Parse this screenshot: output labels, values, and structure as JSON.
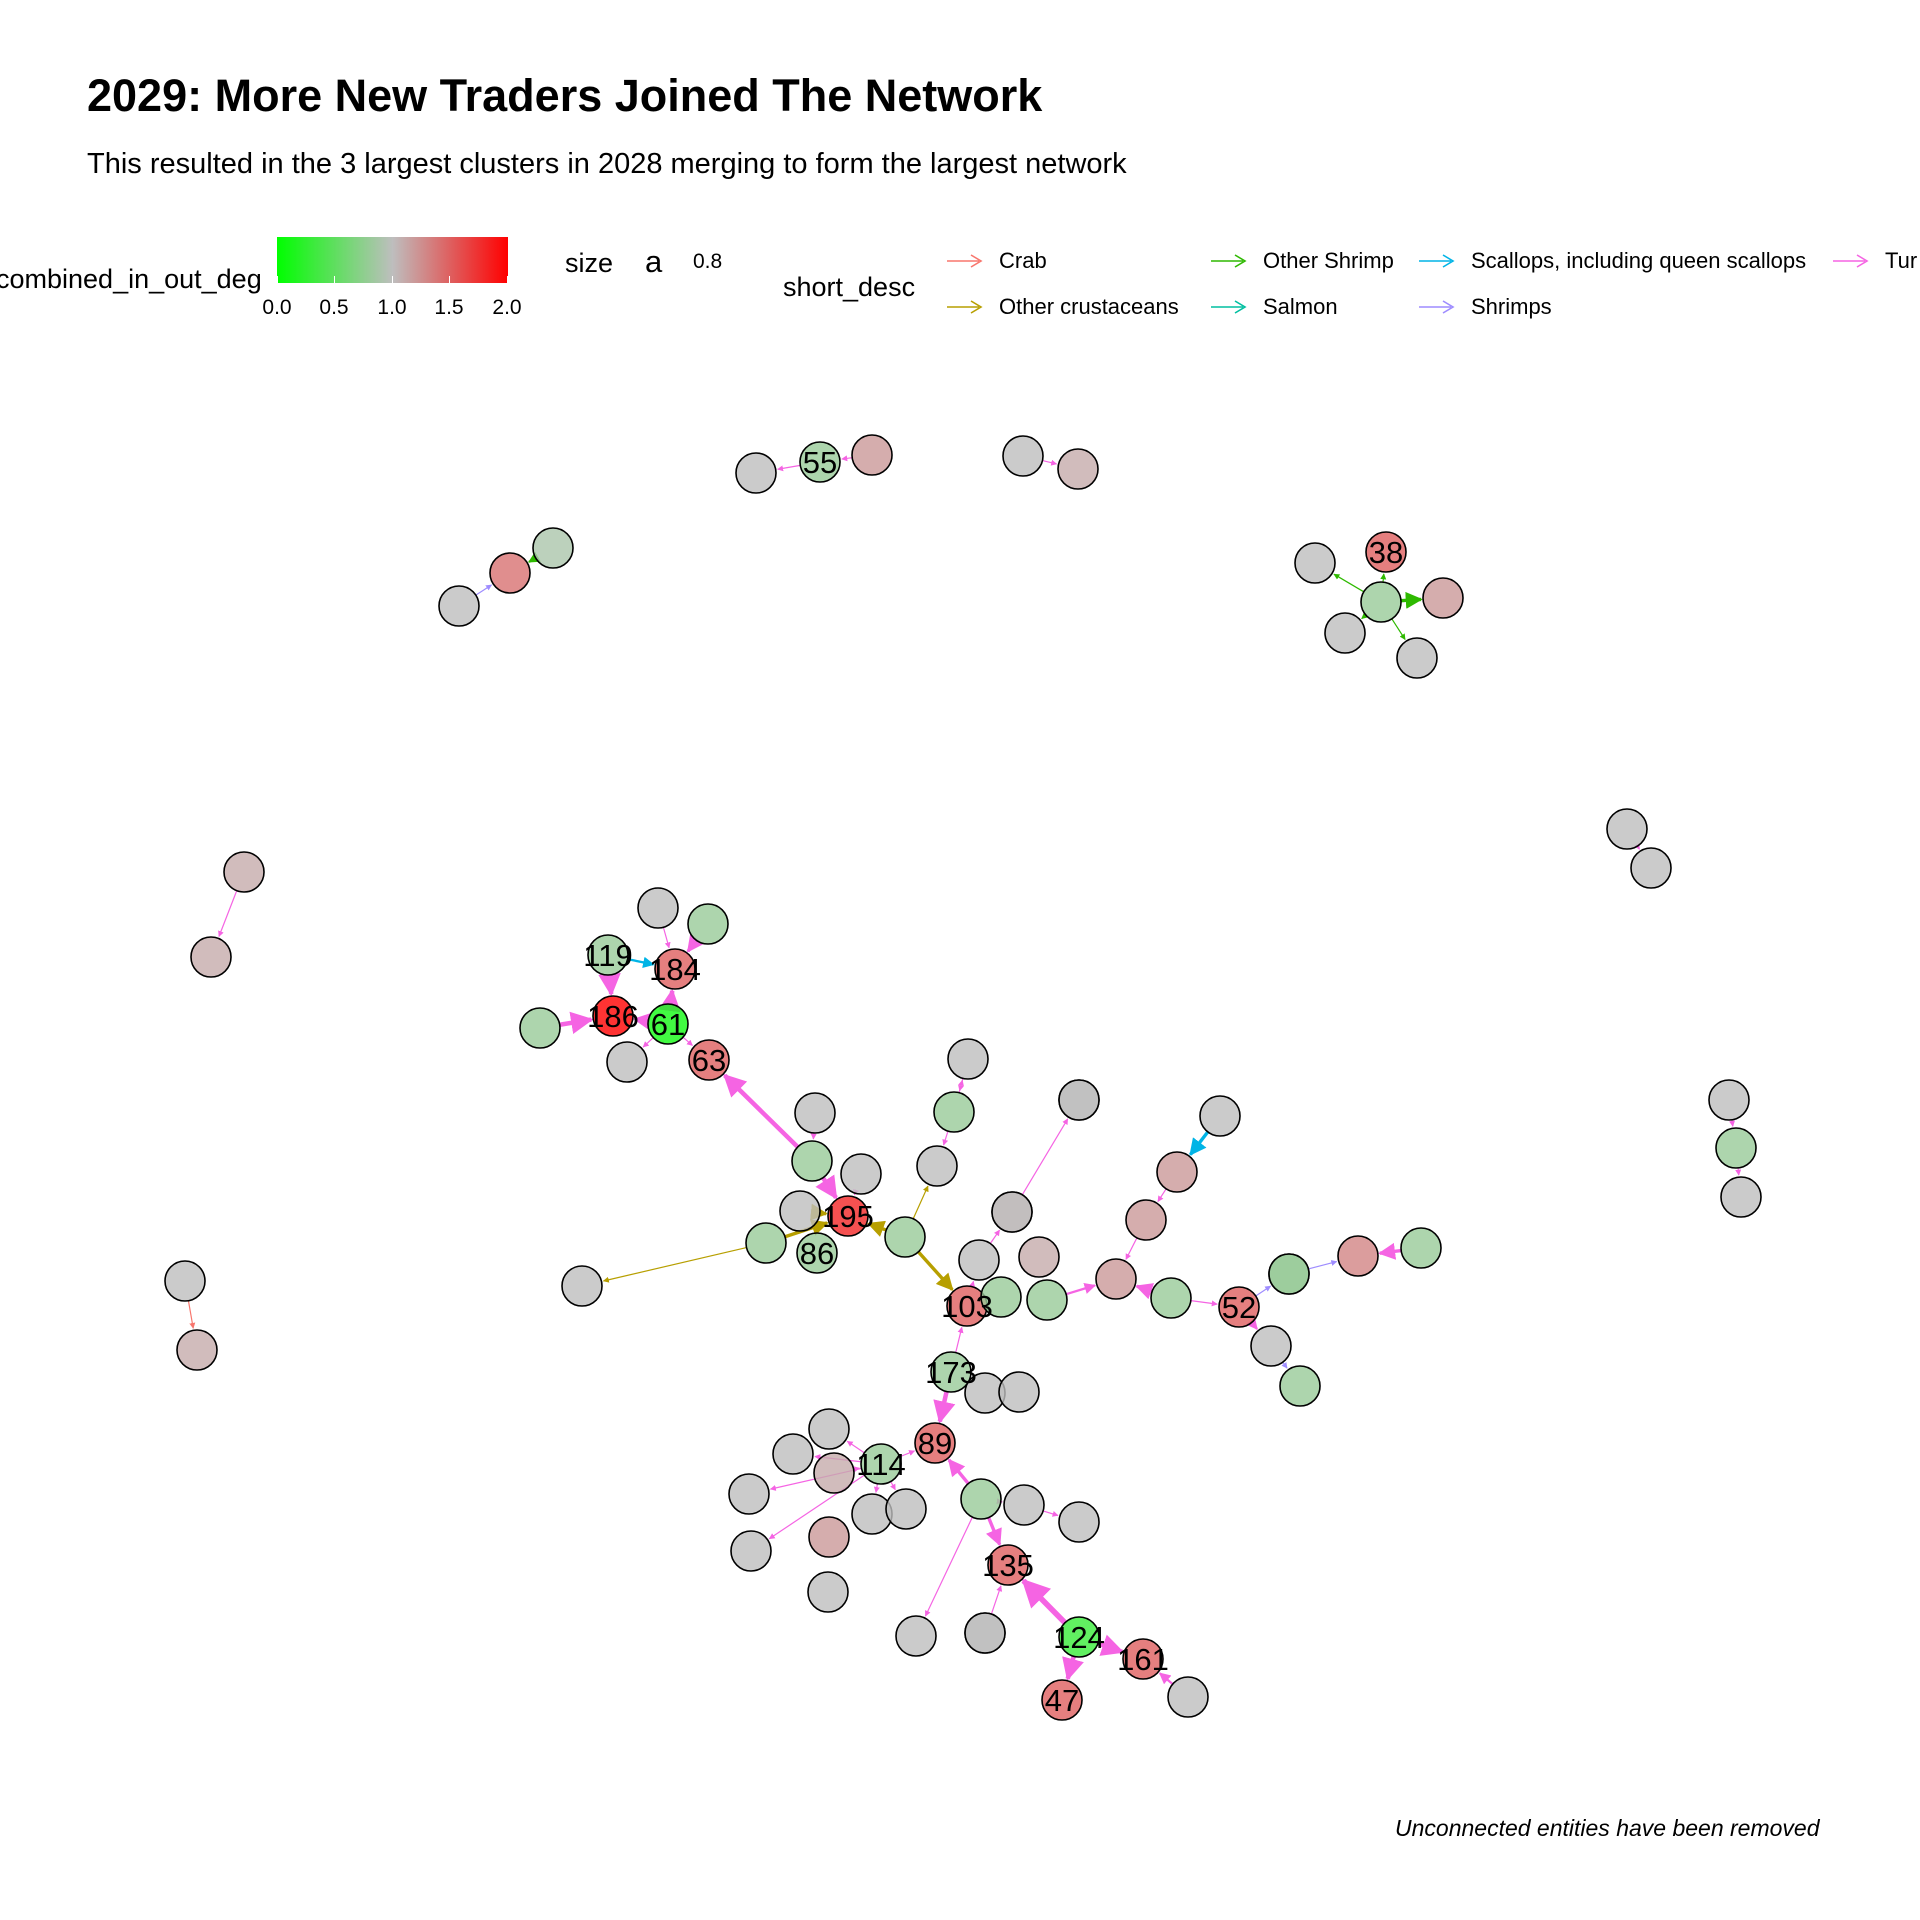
{
  "title": "2029: More New Traders Joined The Network",
  "subtitle": "This resulted in the 3 largest clusters in 2028 merging to form the largest network",
  "caption": "Unconnected entities have been removed",
  "legend": {
    "color_title": "combined_in_out_deg",
    "color_scale": {
      "low": "#00ff00",
      "mid": "#bebebe",
      "high": "#ff0000",
      "range": [
        0,
        2
      ]
    },
    "color_ticks": [
      "0.0",
      "0.5",
      "1.0",
      "1.5",
      "2.0"
    ],
    "size_title": "size",
    "size_key": "a",
    "size_value": "0.8",
    "edge_title": "short_desc",
    "edge_types": [
      {
        "label": "Crab",
        "color": "#f8766d"
      },
      {
        "label": "Other crustaceans",
        "color": "#b79f00"
      },
      {
        "label": "Other Shrimp",
        "color": "#2eb900"
      },
      {
        "label": "Salmon",
        "color": "#00bfa0"
      },
      {
        "label": "Scallops, including queen scallops",
        "color": "#00b4e6"
      },
      {
        "label": "Shrimps",
        "color": "#9e8cff"
      },
      {
        "label": "Tur",
        "color": "#f564e3"
      }
    ]
  },
  "network": {
    "nodes": [
      {
        "id": "n55",
        "label": "55",
        "deg": 0.8
      },
      {
        "id": "nA1",
        "label": "",
        "deg": 1.0
      },
      {
        "id": "nA2",
        "label": "",
        "deg": 1.2
      },
      {
        "id": "nB1",
        "label": "",
        "deg": 1.0
      },
      {
        "id": "nB2",
        "label": "",
        "deg": 1.1
      },
      {
        "id": "nC1",
        "label": "",
        "deg": 0.9
      },
      {
        "id": "nC2",
        "label": "",
        "deg": 1.4
      },
      {
        "id": "nC3",
        "label": "",
        "deg": 1.0
      },
      {
        "id": "n38",
        "label": "38",
        "deg": 1.5
      },
      {
        "id": "nD1",
        "label": "",
        "deg": 0.8
      },
      {
        "id": "nD2",
        "label": "",
        "deg": 1.0
      },
      {
        "id": "nD3",
        "label": "",
        "deg": 1.2
      },
      {
        "id": "nD4",
        "label": "",
        "deg": 1.0
      },
      {
        "id": "nD5",
        "label": "",
        "deg": 1.0
      },
      {
        "id": "nE1",
        "label": "",
        "deg": 1.0
      },
      {
        "id": "nE2",
        "label": "",
        "deg": 1.0
      },
      {
        "id": "nF1",
        "label": "",
        "deg": 1.1
      },
      {
        "id": "nF2",
        "label": "",
        "deg": 1.1
      },
      {
        "id": "nG1",
        "label": "",
        "deg": 1.0
      },
      {
        "id": "nG2",
        "label": "",
        "deg": 0.8
      },
      {
        "id": "nG3",
        "label": "",
        "deg": 1.0
      },
      {
        "id": "nH1",
        "label": "",
        "deg": 1.0
      },
      {
        "id": "nH2",
        "label": "",
        "deg": 1.1
      },
      {
        "id": "n119",
        "label": "119",
        "deg": 0.8
      },
      {
        "id": "n184",
        "label": "184",
        "deg": 1.5
      },
      {
        "id": "n186",
        "label": "186",
        "deg": 2.0
      },
      {
        "id": "n61",
        "label": "61",
        "deg": 0.1
      },
      {
        "id": "n63",
        "label": "63",
        "deg": 1.5
      },
      {
        "id": "nI1",
        "label": "",
        "deg": 1.0
      },
      {
        "id": "nI2",
        "label": "",
        "deg": 0.8
      },
      {
        "id": "nI3",
        "label": "",
        "deg": 0.8
      },
      {
        "id": "nI4",
        "label": "",
        "deg": 1.0
      },
      {
        "id": "n195",
        "label": "195",
        "deg": 1.8
      },
      {
        "id": "n86",
        "label": "86",
        "deg": 0.8
      },
      {
        "id": "nJ1",
        "label": "",
        "deg": 0.8
      },
      {
        "id": "nJ2",
        "label": "",
        "deg": 1.0
      },
      {
        "id": "nJ3",
        "label": "",
        "deg": 1.0
      },
      {
        "id": "nJ4",
        "label": "",
        "deg": 1.0
      },
      {
        "id": "nJ5",
        "label": "",
        "deg": 0.8
      },
      {
        "id": "nJ6",
        "label": "",
        "deg": 0.8
      },
      {
        "id": "nJ7",
        "label": "",
        "deg": 1.0
      },
      {
        "id": "nK1",
        "label": "",
        "deg": 1.0
      },
      {
        "id": "nK2",
        "label": "",
        "deg": 0.8
      },
      {
        "id": "nK3",
        "label": "",
        "deg": 1.0
      },
      {
        "id": "nK4",
        "label": "",
        "deg": 1.0
      },
      {
        "id": "nK5",
        "label": "",
        "deg": 1.0
      },
      {
        "id": "nK6",
        "label": "",
        "deg": 1.1
      },
      {
        "id": "nK7",
        "label": "",
        "deg": 1.0
      },
      {
        "id": "n103",
        "label": "103",
        "deg": 1.5
      },
      {
        "id": "nL1",
        "label": "",
        "deg": 1.0
      },
      {
        "id": "nL2",
        "label": "",
        "deg": 1.1
      },
      {
        "id": "nL3",
        "label": "",
        "deg": 0.8
      },
      {
        "id": "nL4",
        "label": "",
        "deg": 1.2
      },
      {
        "id": "nL5",
        "label": "",
        "deg": 0.8
      },
      {
        "id": "nL6",
        "label": "",
        "deg": 0.8
      },
      {
        "id": "nL7",
        "label": "",
        "deg": 1.2
      },
      {
        "id": "nL8",
        "label": "",
        "deg": 1.2
      },
      {
        "id": "nL9",
        "label": "",
        "deg": 1.0
      },
      {
        "id": "nL10",
        "label": "",
        "deg": 0.8
      },
      {
        "id": "nL11",
        "label": "",
        "deg": 0.8
      },
      {
        "id": "nL12",
        "label": "",
        "deg": 1.3
      },
      {
        "id": "nL13",
        "label": "",
        "deg": 0.8
      },
      {
        "id": "n52",
        "label": "52",
        "deg": 1.5
      },
      {
        "id": "nL14",
        "label": "",
        "deg": 1.0
      },
      {
        "id": "nL15",
        "label": "",
        "deg": 0.8
      },
      {
        "id": "n173",
        "label": "173",
        "deg": 0.8
      },
      {
        "id": "nM1",
        "label": "",
        "deg": 1.0
      },
      {
        "id": "nM2",
        "label": "",
        "deg": 1.0
      },
      {
        "id": "n89",
        "label": "89",
        "deg": 1.5
      },
      {
        "id": "n114",
        "label": "114",
        "deg": 0.8
      },
      {
        "id": "nN1",
        "label": "",
        "deg": 1.0
      },
      {
        "id": "nN2",
        "label": "",
        "deg": 1.0
      },
      {
        "id": "nN3",
        "label": "",
        "deg": 1.1
      },
      {
        "id": "nN4",
        "label": "",
        "deg": 1.0
      },
      {
        "id": "nN5",
        "label": "",
        "deg": 1.0
      },
      {
        "id": "nN6",
        "label": "",
        "deg": 1.0
      },
      {
        "id": "nN7",
        "label": "",
        "deg": 1.0
      },
      {
        "id": "nN8",
        "label": "",
        "deg": 1.2
      },
      {
        "id": "nN9",
        "label": "",
        "deg": 1.0
      },
      {
        "id": "nO1",
        "label": "",
        "deg": 0.8
      },
      {
        "id": "nO2",
        "label": "",
        "deg": 1.0
      },
      {
        "id": "nO3",
        "label": "",
        "deg": 1.0
      },
      {
        "id": "nO4",
        "label": "",
        "deg": 1.0
      },
      {
        "id": "n135",
        "label": "135",
        "deg": 1.5
      },
      {
        "id": "n124",
        "label": "124",
        "deg": 0.3
      },
      {
        "id": "n161",
        "label": "161",
        "deg": 1.5
      },
      {
        "id": "n47",
        "label": "47",
        "deg": 1.5
      },
      {
        "id": "nP1",
        "label": "",
        "deg": 1.0
      },
      {
        "id": "nP2",
        "label": "",
        "deg": 1.0
      },
      {
        "id": "nP3",
        "label": "",
        "deg": 1.0
      }
    ],
    "edges": [
      {
        "from": "n55",
        "to": "nA1",
        "type": "Tur",
        "weight": 1
      },
      {
        "from": "nA2",
        "to": "n55",
        "type": "Tur",
        "weight": 1
      },
      {
        "from": "nB1",
        "to": "nB2",
        "type": "Tur",
        "weight": 1
      },
      {
        "from": "nC1",
        "to": "nC2",
        "type": "Other Shrimp",
        "weight": 2
      },
      {
        "from": "nC3",
        "to": "nC2",
        "type": "Shrimps",
        "weight": 1
      },
      {
        "from": "nD1",
        "to": "n38",
        "type": "Other Shrimp",
        "weight": 1
      },
      {
        "from": "nD1",
        "to": "nD2",
        "type": "Other Shrimp",
        "weight": 1
      },
      {
        "from": "nD1",
        "to": "nD3",
        "type": "Other Shrimp",
        "weight": 3
      },
      {
        "from": "nD1",
        "to": "nD4",
        "type": "Other Shrimp",
        "weight": 1
      },
      {
        "from": "nD1",
        "to": "nD5",
        "type": "Other Shrimp",
        "weight": 1
      },
      {
        "from": "nE1",
        "to": "nE2",
        "type": "Tur",
        "weight": 1
      },
      {
        "from": "nF1",
        "to": "nF2",
        "type": "Tur",
        "weight": 1
      },
      {
        "from": "nG1",
        "to": "nG2",
        "type": "Tur",
        "weight": 1
      },
      {
        "from": "nG2",
        "to": "nG3",
        "type": "Tur",
        "weight": 1
      },
      {
        "from": "nH1",
        "to": "nH2",
        "type": "Crab",
        "weight": 1
      },
      {
        "from": "nI1",
        "to": "n184",
        "type": "Tur",
        "weight": 1
      },
      {
        "from": "nI2",
        "to": "n184",
        "type": "Tur",
        "weight": 3
      },
      {
        "from": "n119",
        "to": "n184",
        "type": "Scallops, including queen scallops",
        "weight": 2
      },
      {
        "from": "n119",
        "to": "n186",
        "type": "Tur",
        "weight": 4
      },
      {
        "from": "n61",
        "to": "n184",
        "type": "Tur",
        "weight": 4
      },
      {
        "from": "nI3",
        "to": "n186",
        "type": "Tur",
        "weight": 4
      },
      {
        "from": "n61",
        "to": "n186",
        "type": "Tur",
        "weight": 3
      },
      {
        "from": "n61",
        "to": "nI4",
        "type": "Tur",
        "weight": 1
      },
      {
        "from": "n61",
        "to": "n63",
        "type": "Tur",
        "weight": 1
      },
      {
        "from": "nJ1",
        "to": "n63",
        "type": "Tur",
        "weight": 4
      },
      {
        "from": "nJ1",
        "to": "n195",
        "type": "Tur",
        "weight": 4
      },
      {
        "from": "nJ2",
        "to": "nJ1",
        "type": "Tur",
        "weight": 1
      },
      {
        "from": "nJ3",
        "to": "n195",
        "type": "Tur",
        "weight": 1
      },
      {
        "from": "nJ4",
        "to": "n195",
        "type": "Other crustaceans",
        "weight": 3
      },
      {
        "from": "nJ5",
        "to": "n195",
        "type": "Other crustaceans",
        "weight": 3
      },
      {
        "from": "nJ5",
        "to": "nJ7",
        "type": "Other crustaceans",
        "weight": 1
      },
      {
        "from": "nJ6",
        "to": "n195",
        "type": "Other crustaceans",
        "weight": 3
      },
      {
        "from": "nJ6",
        "to": "nK1",
        "type": "Other crustaceans",
        "weight": 1
      },
      {
        "from": "nJ6",
        "to": "n103",
        "type": "Other crustaceans",
        "weight": 3
      },
      {
        "from": "nK2",
        "to": "nK1",
        "type": "Tur",
        "weight": 1
      },
      {
        "from": "nK3",
        "to": "nK2",
        "type": "Tur",
        "weight": 1
      },
      {
        "from": "nK2",
        "to": "nK3",
        "type": "Tur",
        "weight": 1
      },
      {
        "from": "nL1",
        "to": "nK7",
        "type": "Tur",
        "weight": 1
      },
      {
        "from": "n103",
        "to": "nL1",
        "type": "Tur",
        "weight": 1
      },
      {
        "from": "nK6",
        "to": "nK4",
        "type": "Tur",
        "weight": 1
      },
      {
        "from": "nL3",
        "to": "nL4",
        "type": "Tur",
        "weight": 2
      },
      {
        "from": "nL6",
        "to": "nL4",
        "type": "Tur",
        "weight": 3
      },
      {
        "from": "nL7",
        "to": "nL4",
        "type": "Tur",
        "weight": 1
      },
      {
        "from": "nL8",
        "to": "nL7",
        "type": "Tur",
        "weight": 1
      },
      {
        "from": "nL9",
        "to": "nL8",
        "type": "Scallops, including queen scallops",
        "weight": 3
      },
      {
        "from": "nL6",
        "to": "n52",
        "type": "Tur",
        "weight": 1
      },
      {
        "from": "n52",
        "to": "nL10",
        "type": "Shrimps",
        "weight": 1
      },
      {
        "from": "nL10",
        "to": "nL12",
        "type": "Shrimps",
        "weight": 1
      },
      {
        "from": "nL13",
        "to": "nL12",
        "type": "Tur",
        "weight": 3
      },
      {
        "from": "n52",
        "to": "nL14",
        "type": "Tur",
        "weight": 2
      },
      {
        "from": "nL14",
        "to": "nL15",
        "type": "Shrimps",
        "weight": 1
      },
      {
        "from": "n173",
        "to": "n103",
        "type": "Tur",
        "weight": 1
      },
      {
        "from": "n173",
        "to": "n89",
        "type": "Tur",
        "weight": 4
      },
      {
        "from": "nN3",
        "to": "n114",
        "type": "Tur",
        "weight": 1
      },
      {
        "from": "n114",
        "to": "nN1",
        "type": "Tur",
        "weight": 1
      },
      {
        "from": "n114",
        "to": "nN2",
        "type": "Tur",
        "weight": 1
      },
      {
        "from": "n114",
        "to": "nN4",
        "type": "Tur",
        "weight": 1
      },
      {
        "from": "n114",
        "to": "nN5",
        "type": "Tur",
        "weight": 1
      },
      {
        "from": "n114",
        "to": "nN6",
        "type": "Tur",
        "weight": 1
      },
      {
        "from": "n114",
        "to": "nN7",
        "type": "Tur",
        "weight": 1
      },
      {
        "from": "n114",
        "to": "n89",
        "type": "Tur",
        "weight": 1
      },
      {
        "from": "nO1",
        "to": "n89",
        "type": "Tur",
        "weight": 3
      },
      {
        "from": "nO1",
        "to": "nO2",
        "type": "Tur",
        "weight": 1
      },
      {
        "from": "nO2",
        "to": "nO3",
        "type": "Tur",
        "weight": 1
      },
      {
        "from": "nO1",
        "to": "nO4",
        "type": "Tur",
        "weight": 1
      },
      {
        "from": "nO1",
        "to": "n135",
        "type": "Tur",
        "weight": 3
      },
      {
        "from": "nP1",
        "to": "n135",
        "type": "Tur",
        "weight": 1
      },
      {
        "from": "n124",
        "to": "n135",
        "type": "Tur",
        "weight": 5
      },
      {
        "from": "n124",
        "to": "n47",
        "type": "Tur",
        "weight": 4
      },
      {
        "from": "n124",
        "to": "n161",
        "type": "Tur",
        "weight": 4
      },
      {
        "from": "nP3",
        "to": "n161",
        "type": "Tur",
        "weight": 2
      }
    ]
  }
}
